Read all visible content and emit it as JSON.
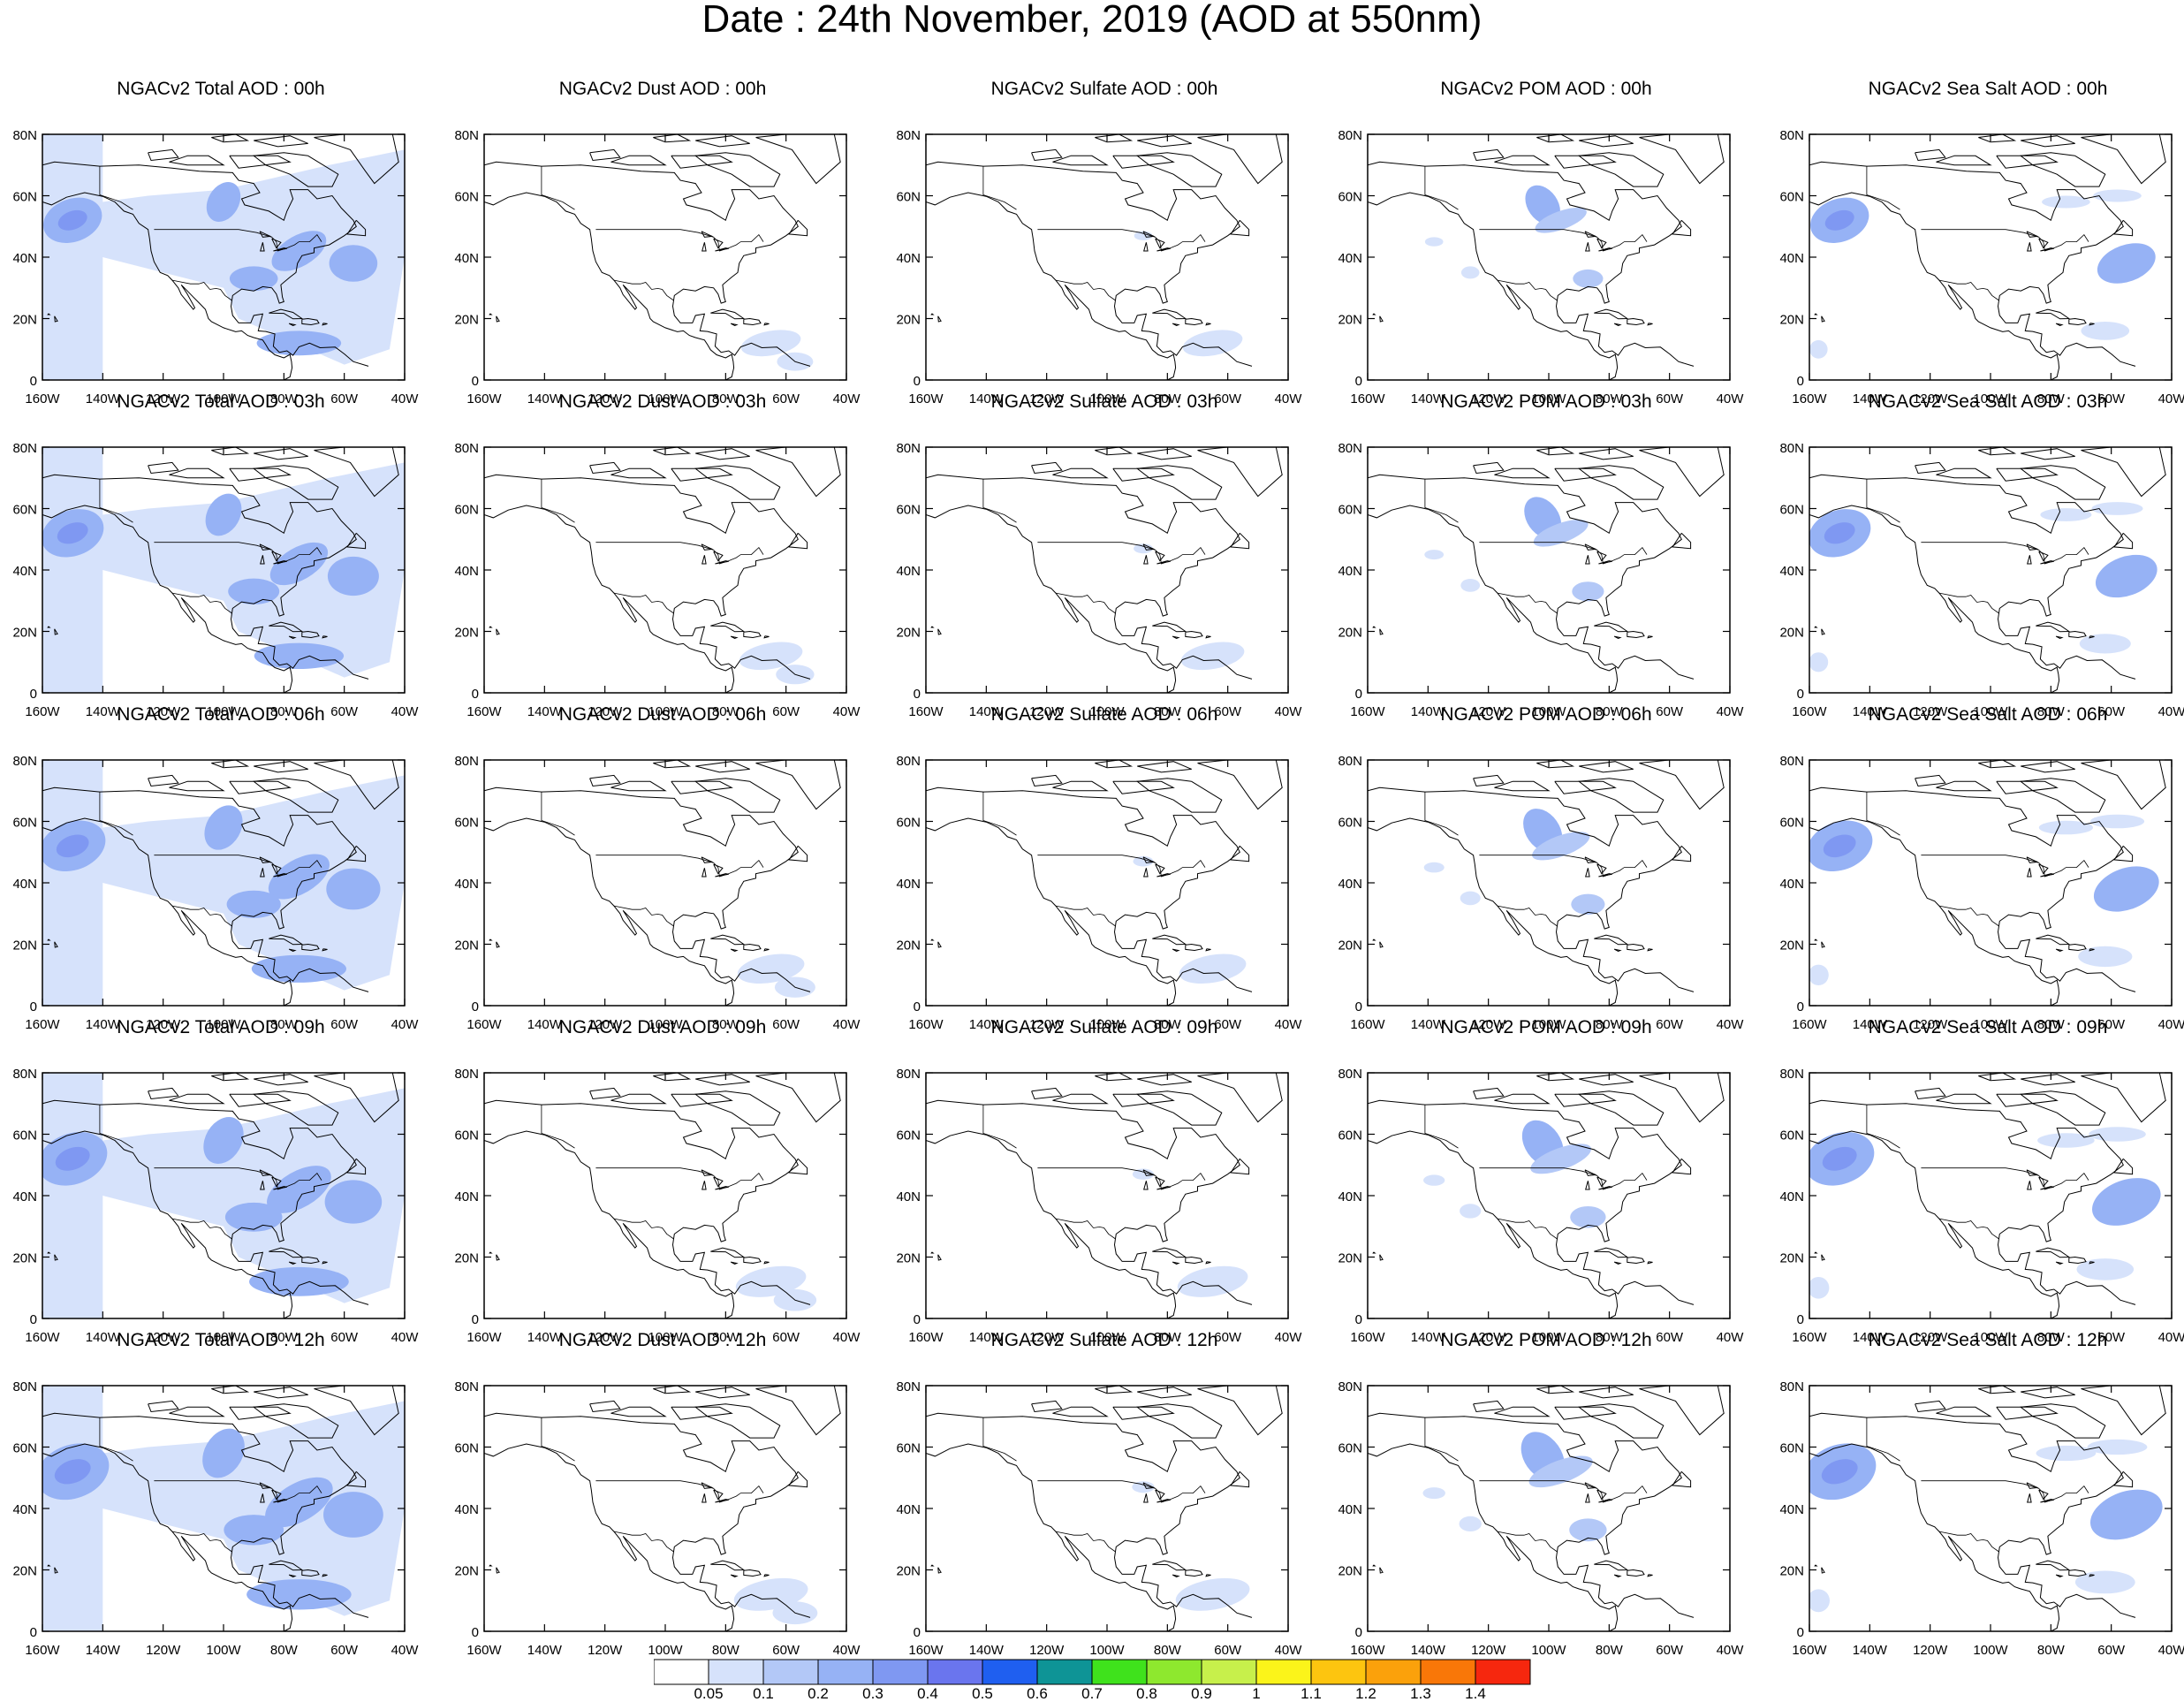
{
  "title": "Date : 24th November, 2019 (AOD at 550nm)",
  "panel_titles": [
    [
      "NGACv2 Total AOD : 00h",
      "NGACv2 Dust AOD : 00h",
      "NGACv2 Sulfate AOD : 00h",
      "NGACv2 POM AOD : 00h",
      "NGACv2 Sea Salt AOD : 00h"
    ],
    [
      "NGACv2 Total AOD : 03h",
      "NGACv2 Dust AOD : 03h",
      "NGACv2 Sulfate AOD : 03h",
      "NGACv2 POM AOD : 03h",
      "NGACv2 Sea Salt AOD : 03h"
    ],
    [
      "NGACv2 Total AOD : 06h",
      "NGACv2 Dust AOD : 06h",
      "NGACv2 Sulfate AOD : 06h",
      "NGACv2 POM AOD : 06h",
      "NGACv2 Sea Salt AOD : 06h"
    ],
    [
      "NGACv2 Total AOD : 09h",
      "NGACv2 Dust AOD : 09h",
      "NGACv2 Sulfate AOD : 09h",
      "NGACv2 POM AOD : 09h",
      "NGACv2 Sea Salt  AOD : 09h"
    ],
    [
      "NGACv2 Total AOD  : 12h",
      "NGACv2 Dust AOD : 12h",
      "NGACv2 Sulfate AOD : 12h",
      "NGACv2 POM  AOD : 12h",
      "NGACv2 Sea Salt  AOD : 12h"
    ]
  ],
  "lat_labels": [
    "80N",
    "60N",
    "40N",
    "20N",
    "0"
  ],
  "lon_labels": [
    "160W",
    "140W",
    "120W",
    "100W",
    "80W",
    "60W",
    "40W"
  ],
  "colorbar": {
    "levels": [
      "0.05",
      "0.1",
      "0.2",
      "0.3",
      "0.4",
      "0.5",
      "0.6",
      "0.7",
      "0.8",
      "0.9",
      "1",
      "1.1",
      "1.2",
      "1.3",
      "1.4"
    ],
    "colors": [
      "#ffffff",
      "#d6e2fb",
      "#b3c8f7",
      "#96b2f5",
      "#7f98f2",
      "#6a75ee",
      "#1f5ff0",
      "#0e9496",
      "#3fe21c",
      "#8ee82e",
      "#c7f04b",
      "#fbf41a",
      "#fdc50f",
      "#fba10b",
      "#f97708",
      "#f6270e"
    ]
  }
}
